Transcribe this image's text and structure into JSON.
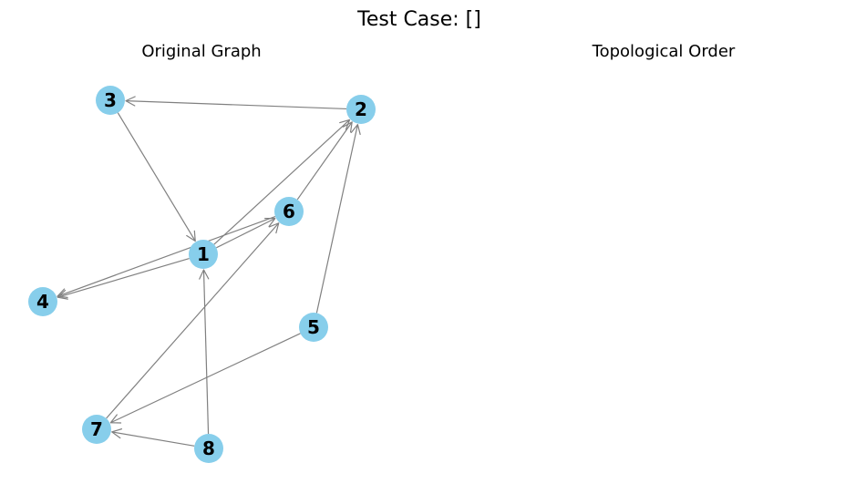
{
  "figure": {
    "title": "Test Case: []"
  },
  "panels": {
    "left_title": "Original Graph",
    "right_title": "Topological Order"
  },
  "graph": {
    "nodes": [
      {
        "id": "1",
        "label": "1"
      },
      {
        "id": "2",
        "label": "2"
      },
      {
        "id": "3",
        "label": "3"
      },
      {
        "id": "4",
        "label": "4"
      },
      {
        "id": "5",
        "label": "5"
      },
      {
        "id": "6",
        "label": "6"
      },
      {
        "id": "7",
        "label": "7"
      },
      {
        "id": "8",
        "label": "8"
      }
    ],
    "edges": [
      {
        "from": "2",
        "to": "3"
      },
      {
        "from": "3",
        "to": "1"
      },
      {
        "from": "1",
        "to": "2"
      },
      {
        "from": "1",
        "to": "6"
      },
      {
        "from": "6",
        "to": "2"
      },
      {
        "from": "6",
        "to": "4"
      },
      {
        "from": "1",
        "to": "4"
      },
      {
        "from": "5",
        "to": "2"
      },
      {
        "from": "5",
        "to": "7"
      },
      {
        "from": "7",
        "to": "6"
      },
      {
        "from": "8",
        "to": "1"
      },
      {
        "from": "8",
        "to": "7"
      }
    ],
    "node_color": "#87ceeb",
    "edge_color": "#808080"
  }
}
